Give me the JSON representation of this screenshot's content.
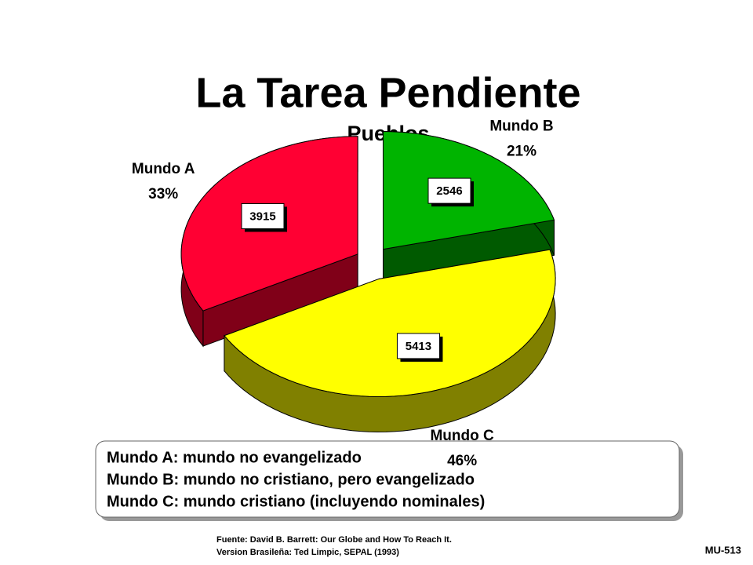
{
  "chart_data": {
    "type": "pie3d",
    "title": "La Tarea Pendiente",
    "subtitle": "Pueblos",
    "categories": [
      "Mundo A",
      "Mundo B",
      "Mundo C"
    ],
    "values": [
      33,
      21,
      46
    ],
    "value_labels": [
      "33%",
      "21%",
      "46%"
    ],
    "counts": [
      3915,
      2546,
      5413
    ],
    "colors": [
      "#ff0033",
      "#00b400",
      "#ffff00"
    ],
    "side_colors": [
      "#800018",
      "#005a00",
      "#808000"
    ],
    "legend": [
      "Mundo A: mundo no evangelizado",
      "Mundo B: mundo no cristiano, pero evangelizado",
      "Mundo C: mundo cristiano (incluyendo nominales)"
    ],
    "source": [
      "Fuente: David B. Barrett: Our Globe and How To Reach It.",
      "Version Brasileña: Ted Limpic, SEPAL (1993)"
    ],
    "code": "MU-513"
  }
}
